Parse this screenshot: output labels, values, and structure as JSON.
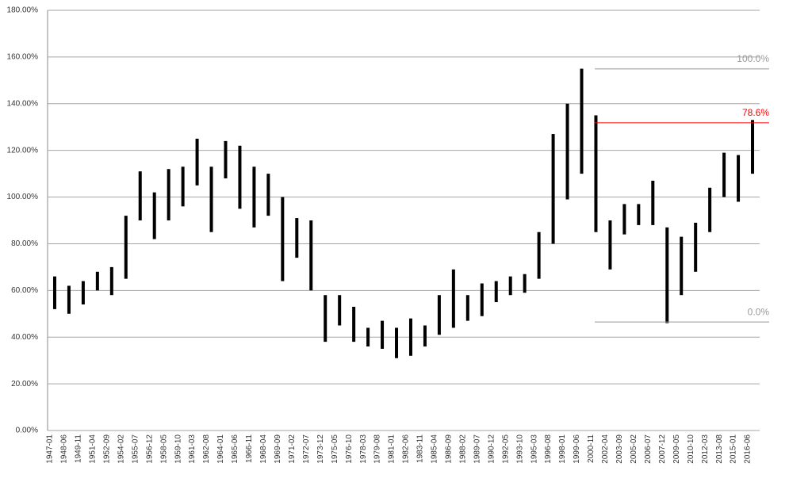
{
  "chart_data": {
    "type": "range",
    "categories": [
      "1947-01",
      "1948-06",
      "1949-11",
      "1951-04",
      "1952-09",
      "1954-02",
      "1955-07",
      "1956-12",
      "1958-05",
      "1959-10",
      "1961-03",
      "1962-08",
      "1964-01",
      "1965-06",
      "1966-11",
      "1968-04",
      "1969-09",
      "1971-02",
      "1972-07",
      "1973-12",
      "1975-05",
      "1976-10",
      "1978-03",
      "1979-08",
      "1981-01",
      "1982-06",
      "1983-11",
      "1985-04",
      "1986-09",
      "1988-02",
      "1989-07",
      "1990-12",
      "1992-05",
      "1993-10",
      "1995-03",
      "1996-08",
      "1998-01",
      "1999-06",
      "2000-11",
      "2002-04",
      "2003-09",
      "2005-02",
      "2006-07",
      "2007-12",
      "2009-05",
      "2010-10",
      "2012-03",
      "2013-08",
      "2015-01",
      "2016-06"
    ],
    "low": [
      52,
      50,
      54,
      60,
      58,
      65,
      90,
      82,
      90,
      96,
      105,
      85,
      108,
      95,
      87,
      92,
      64,
      74,
      60,
      38,
      45,
      38,
      36,
      35,
      31,
      32,
      36,
      41,
      44,
      47,
      49,
      55,
      58,
      59,
      65,
      80,
      99,
      110,
      85,
      69,
      84,
      88,
      88,
      46,
      58,
      68,
      85,
      100,
      98,
      110
    ],
    "high": [
      66,
      62,
      64,
      68,
      70,
      92,
      111,
      102,
      112,
      113,
      125,
      113,
      124,
      122,
      113,
      110,
      100,
      91,
      90,
      58,
      58,
      53,
      44,
      47,
      44,
      48,
      45,
      58,
      69,
      58,
      63,
      64,
      66,
      67,
      85,
      127,
      140,
      155,
      135,
      90,
      97,
      97,
      107,
      87,
      83,
      89,
      104,
      119,
      118,
      133
    ],
    "color": "#000000",
    "ylim": [
      0,
      180
    ],
    "yticks": [
      {
        "value": 0,
        "label": "0.00%"
      },
      {
        "value": 20,
        "label": "20.00%"
      },
      {
        "value": 40,
        "label": "40.00%"
      },
      {
        "value": 60,
        "label": "60.00%"
      },
      {
        "value": 80,
        "label": "80.00%"
      },
      {
        "value": 100,
        "label": "100.00%"
      },
      {
        "value": 120,
        "label": "120.00%"
      },
      {
        "value": 140,
        "label": "140.00%"
      },
      {
        "value": 160,
        "label": "160.00%"
      },
      {
        "value": 180,
        "label": "180.00%"
      }
    ],
    "grid": true,
    "fib_levels": [
      {
        "label": "100.0%",
        "price": 154.9,
        "color": "#999999"
      },
      {
        "label": "78.6%",
        "price": 131.8,
        "color": "#ff0000"
      },
      {
        "label": "0.0%",
        "price": 46.5,
        "color": "#999999"
      }
    ]
  }
}
